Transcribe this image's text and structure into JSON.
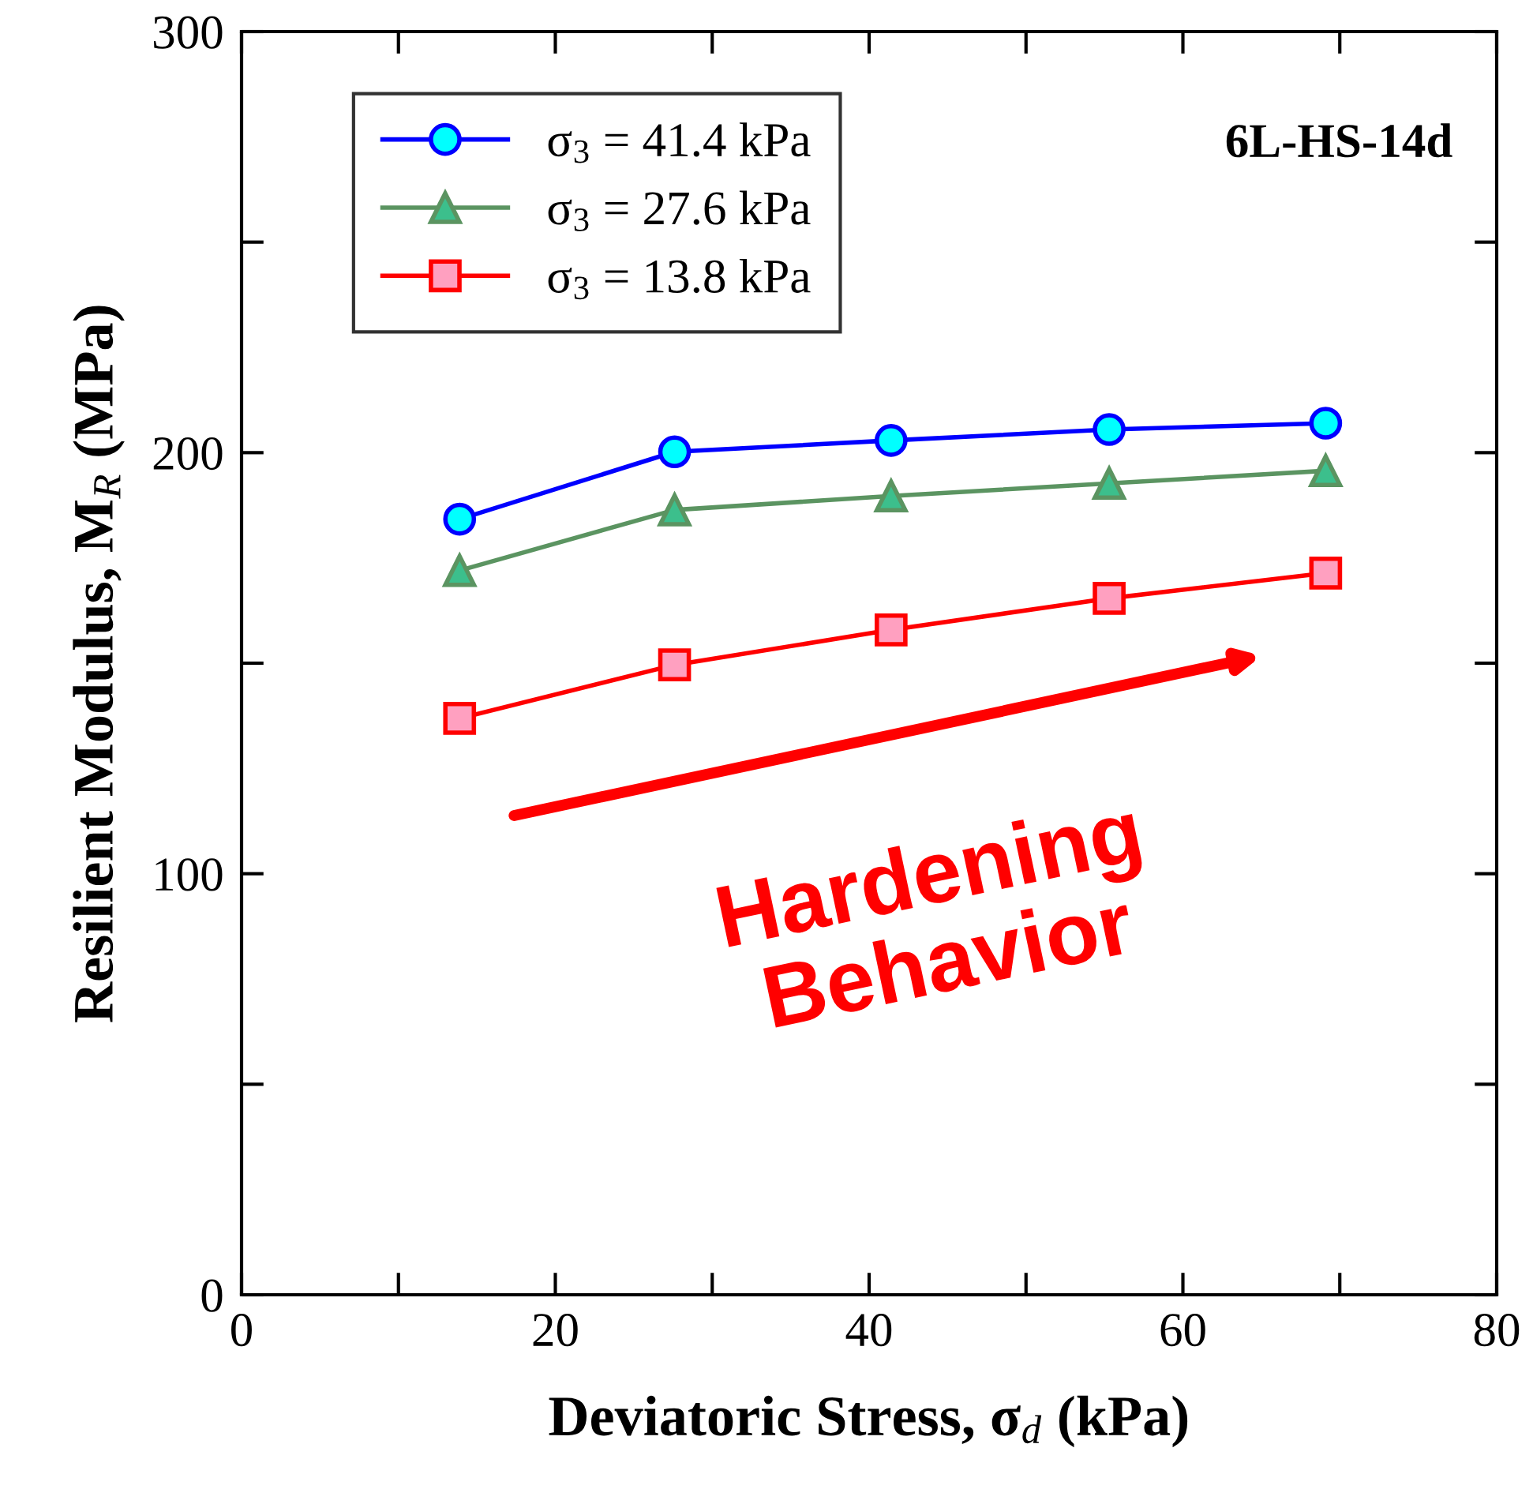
{
  "chart_data": {
    "type": "line",
    "xlabel": "Deviatoric Stress, σ$_{d}$ (kPa)",
    "ylabel": "Resilient Modulus, M$_{R}$ (MPa)",
    "x": [
      13.9,
      27.6,
      41.4,
      55.3,
      69.1
    ],
    "series": [
      {
        "name": "σ$_{3}$ = 41.4 kPa",
        "color": "#0000ff",
        "marker": "circle",
        "values": [
          184.2,
          200.2,
          202.9,
          205.5,
          207
        ]
      },
      {
        "name": "σ$_{3}$ = 27.6 kPa",
        "color": "#5b9461",
        "marker": "triangle",
        "values": [
          172,
          186.4,
          189.7,
          192.7,
          195.7
        ]
      },
      {
        "name": "σ$_{3}$ = 13.8 kPa",
        "color": "#ff0000",
        "marker": "square",
        "values": [
          136.9,
          149.6,
          157.9,
          165.4,
          171.4
        ]
      }
    ],
    "xlim": [
      0,
      80
    ],
    "ylim": [
      0,
      300
    ],
    "xticks": [
      0,
      {
        "value": 10,
        "label": null
      },
      20,
      {
        "value": 30,
        "label": null
      },
      40,
      {
        "value": 50,
        "label": null
      },
      60,
      {
        "value": 70,
        "label": null
      },
      80
    ],
    "yticks": [
      0,
      {
        "value": 50,
        "label": null
      },
      100,
      {
        "value": 150,
        "label": null
      },
      200,
      {
        "value": 250,
        "label": null
      },
      300
    ],
    "grid": false,
    "legend": "top left",
    "annotations": [
      "6L-HS-14d",
      "Hardening\nBehavior"
    ]
  }
}
